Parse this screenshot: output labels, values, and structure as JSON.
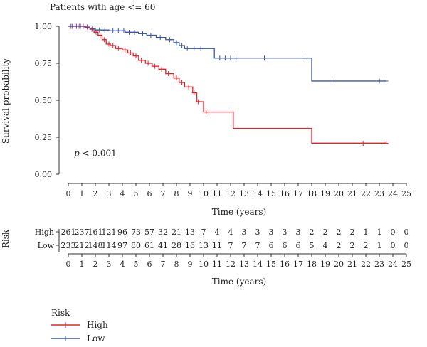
{
  "chart_data": {
    "type": "line",
    "subtype": "kaplan-meier",
    "title": "Patients with age <= 60",
    "xlabel": "Time (years)",
    "ylabel": "Survival probability",
    "xlim": [
      0,
      25
    ],
    "ylim": [
      0,
      1
    ],
    "x_ticks": [
      0,
      1,
      2,
      3,
      4,
      5,
      6,
      7,
      8,
      9,
      10,
      11,
      12,
      13,
      14,
      15,
      16,
      17,
      18,
      19,
      20,
      21,
      22,
      23,
      24,
      25
    ],
    "y_ticks": [
      "0.00",
      "0.25",
      "0.50",
      "0.75",
      "1.00"
    ],
    "y_tick_values": [
      0,
      0.25,
      0.5,
      0.75,
      1.0
    ],
    "annotation": {
      "p_label": "p",
      "p_value": " < 0.001",
      "x": 1.0,
      "y": 0.085
    },
    "series": [
      {
        "name": "High",
        "color": "#e8202a",
        "steps": [
          [
            0,
            1.0
          ],
          [
            1.3,
            0.99
          ],
          [
            1.6,
            0.98
          ],
          [
            1.9,
            0.96
          ],
          [
            2.2,
            0.94
          ],
          [
            2.5,
            0.91
          ],
          [
            2.8,
            0.88
          ],
          [
            3.1,
            0.87
          ],
          [
            3.5,
            0.85
          ],
          [
            4.0,
            0.84
          ],
          [
            4.4,
            0.82
          ],
          [
            4.8,
            0.8
          ],
          [
            5.2,
            0.77
          ],
          [
            5.7,
            0.75
          ],
          [
            6.2,
            0.73
          ],
          [
            6.7,
            0.71
          ],
          [
            7.2,
            0.68
          ],
          [
            7.8,
            0.65
          ],
          [
            8.2,
            0.62
          ],
          [
            8.6,
            0.59
          ],
          [
            9.2,
            0.55
          ],
          [
            9.5,
            0.49
          ],
          [
            10.0,
            0.42
          ],
          [
            12.2,
            0.31
          ],
          [
            18.0,
            0.21
          ],
          [
            23.5,
            0.21
          ]
        ],
        "censors": [
          [
            0.2,
            1.0
          ],
          [
            0.5,
            1.0
          ],
          [
            0.8,
            1.0
          ],
          [
            1.1,
            1.0
          ],
          [
            1.45,
            0.99
          ],
          [
            1.75,
            0.98
          ],
          [
            2.05,
            0.96
          ],
          [
            2.35,
            0.94
          ],
          [
            2.65,
            0.91
          ],
          [
            3.0,
            0.88
          ],
          [
            3.3,
            0.87
          ],
          [
            3.7,
            0.85
          ],
          [
            4.2,
            0.84
          ],
          [
            4.6,
            0.82
          ],
          [
            5.0,
            0.8
          ],
          [
            5.4,
            0.77
          ],
          [
            5.9,
            0.75
          ],
          [
            6.4,
            0.73
          ],
          [
            6.9,
            0.71
          ],
          [
            7.4,
            0.68
          ],
          [
            8.0,
            0.65
          ],
          [
            8.4,
            0.62
          ],
          [
            8.9,
            0.59
          ],
          [
            9.3,
            0.55
          ],
          [
            9.6,
            0.49
          ],
          [
            10.2,
            0.42
          ],
          [
            21.8,
            0.21
          ],
          [
            23.5,
            0.21
          ]
        ]
      },
      {
        "name": "Low",
        "color": "#3b56a8",
        "steps": [
          [
            0,
            1.0
          ],
          [
            1.2,
            0.995
          ],
          [
            1.6,
            0.985
          ],
          [
            2.0,
            0.975
          ],
          [
            3.0,
            0.97
          ],
          [
            4.2,
            0.96
          ],
          [
            5.2,
            0.95
          ],
          [
            5.8,
            0.94
          ],
          [
            6.5,
            0.925
          ],
          [
            7.2,
            0.91
          ],
          [
            7.8,
            0.89
          ],
          [
            8.2,
            0.87
          ],
          [
            8.6,
            0.85
          ],
          [
            10.8,
            0.785
          ],
          [
            18.0,
            0.63
          ],
          [
            23.5,
            0.63
          ]
        ],
        "censors": [
          [
            0.3,
            1.0
          ],
          [
            0.6,
            1.0
          ],
          [
            0.9,
            1.0
          ],
          [
            1.4,
            0.995
          ],
          [
            1.8,
            0.985
          ],
          [
            2.3,
            0.975
          ],
          [
            2.7,
            0.975
          ],
          [
            3.3,
            0.97
          ],
          [
            3.7,
            0.97
          ],
          [
            4.1,
            0.97
          ],
          [
            4.5,
            0.96
          ],
          [
            4.9,
            0.96
          ],
          [
            5.5,
            0.95
          ],
          [
            6.1,
            0.94
          ],
          [
            6.8,
            0.925
          ],
          [
            7.5,
            0.91
          ],
          [
            8.0,
            0.89
          ],
          [
            8.4,
            0.87
          ],
          [
            8.8,
            0.85
          ],
          [
            9.3,
            0.85
          ],
          [
            9.8,
            0.85
          ],
          [
            11.2,
            0.785
          ],
          [
            11.6,
            0.785
          ],
          [
            12.0,
            0.785
          ],
          [
            12.4,
            0.785
          ],
          [
            14.5,
            0.785
          ],
          [
            17.5,
            0.785
          ],
          [
            19.5,
            0.63
          ],
          [
            23.0,
            0.63
          ],
          [
            23.5,
            0.63
          ]
        ]
      }
    ],
    "risk_table": {
      "title": "Risk",
      "times": [
        0,
        1,
        2,
        3,
        4,
        5,
        6,
        7,
        8,
        9,
        10,
        11,
        12,
        13,
        14,
        15,
        16,
        17,
        18,
        19,
        20,
        21,
        22,
        23,
        24,
        25
      ],
      "rows": [
        {
          "name": "High",
          "values": [
            261,
            237,
            161,
            121,
            96,
            73,
            57,
            32,
            21,
            13,
            7,
            4,
            4,
            3,
            3,
            3,
            3,
            3,
            2,
            2,
            2,
            2,
            1,
            1,
            0,
            0
          ]
        },
        {
          "name": "Low",
          "values": [
            233,
            212,
            148,
            114,
            97,
            80,
            61,
            41,
            28,
            16,
            13,
            11,
            7,
            7,
            7,
            6,
            6,
            6,
            5,
            4,
            2,
            2,
            2,
            1,
            0,
            0
          ]
        }
      ],
      "xlabel": "Time (years)"
    },
    "legend": {
      "title": "Risk",
      "placement": "bottom-left",
      "entries": [
        {
          "name": "High",
          "color": "#e8202a"
        },
        {
          "name": "Low",
          "color": "#3b56a8"
        }
      ]
    }
  }
}
